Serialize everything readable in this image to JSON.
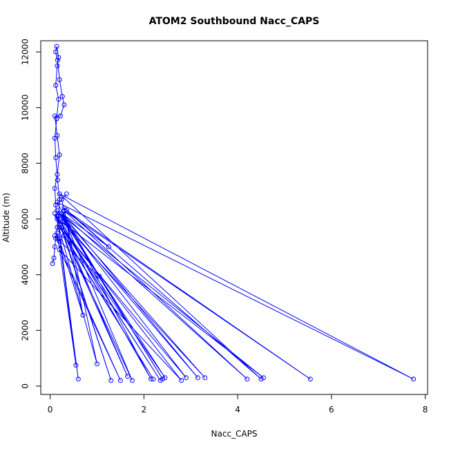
{
  "chart_data": {
    "type": "line",
    "title": "ATOM2 Southbound Nacc_CAPS",
    "xlabel": "Nacc_CAPS",
    "ylabel": "Altitude (m)",
    "xlim": [
      -0.2,
      8.05
    ],
    "ylim": [
      -300,
      12400
    ],
    "xticks": [
      0,
      2,
      4,
      6,
      8
    ],
    "yticks": [
      0,
      2000,
      4000,
      6000,
      8000,
      10000,
      12000
    ],
    "grid": false,
    "legend": "none",
    "color": "#0000ff",
    "series": [
      {
        "marker": "open-circle",
        "points": [
          [
            0.05,
            4400
          ],
          [
            0.08,
            4600
          ],
          [
            0.1,
            5000
          ],
          [
            0.12,
            5300
          ],
          [
            0.15,
            5700
          ],
          [
            0.18,
            6100
          ],
          [
            0.2,
            6700
          ],
          [
            0.16,
            7400
          ],
          [
            0.12,
            8200
          ],
          [
            0.1,
            8900
          ],
          [
            0.14,
            9600
          ],
          [
            0.18,
            10300
          ],
          [
            0.12,
            10800
          ],
          [
            0.15,
            11500
          ],
          [
            0.18,
            11800
          ],
          [
            0.14,
            12200
          ],
          [
            0.12,
            12000
          ],
          [
            0.16,
            11700
          ],
          [
            0.2,
            11000
          ],
          [
            0.26,
            10400
          ],
          [
            0.3,
            10100
          ],
          [
            0.22,
            9700
          ],
          [
            0.1,
            9700
          ],
          [
            0.15,
            9000
          ],
          [
            0.2,
            8300
          ],
          [
            0.15,
            7600
          ],
          [
            0.1,
            7100
          ],
          [
            0.12,
            6500
          ],
          [
            0.15,
            6000
          ],
          [
            0.2,
            5800
          ],
          [
            1.75,
            200
          ],
          [
            0.3,
            6000
          ],
          [
            2.4,
            250
          ],
          [
            0.2,
            6200
          ],
          [
            4.55,
            300
          ],
          [
            0.25,
            5900
          ],
          [
            3.3,
            300
          ],
          [
            0.15,
            6300
          ],
          [
            2.9,
            300
          ],
          [
            0.2,
            5700
          ],
          [
            2.2,
            250
          ],
          [
            0.3,
            5400
          ],
          [
            1.3,
            200
          ],
          [
            0.15,
            6100
          ],
          [
            0.6,
            250
          ],
          [
            0.2,
            5300
          ],
          [
            0.55,
            750
          ],
          [
            0.15,
            5500
          ],
          [
            0.7,
            2550
          ],
          [
            0.3,
            6400
          ],
          [
            1.25,
            5000
          ],
          [
            0.25,
            6200
          ],
          [
            1.05,
            3950
          ],
          [
            0.2,
            5200
          ],
          [
            0.1,
            5400
          ],
          [
            1.5,
            200
          ],
          [
            0.2,
            4900
          ],
          [
            2.8,
            200
          ],
          [
            0.3,
            5600
          ],
          [
            2.35,
            200
          ],
          [
            0.25,
            5700
          ],
          [
            2.45,
            300
          ],
          [
            0.3,
            5900
          ],
          [
            3.15,
            300
          ],
          [
            0.25,
            6200
          ],
          [
            4.2,
            250
          ],
          [
            0.3,
            6300
          ],
          [
            5.55,
            250
          ],
          [
            0.35,
            6300
          ],
          [
            4.5,
            250
          ],
          [
            0.2,
            6900
          ],
          [
            7.75,
            250
          ],
          [
            0.15,
            6600
          ],
          [
            2.15,
            250
          ],
          [
            0.2,
            6000
          ],
          [
            1.65,
            350
          ],
          [
            0.1,
            6200
          ],
          [
            1.0,
            800
          ],
          [
            0.25,
            6700
          ],
          [
            0.35,
            6900
          ]
        ]
      }
    ]
  }
}
